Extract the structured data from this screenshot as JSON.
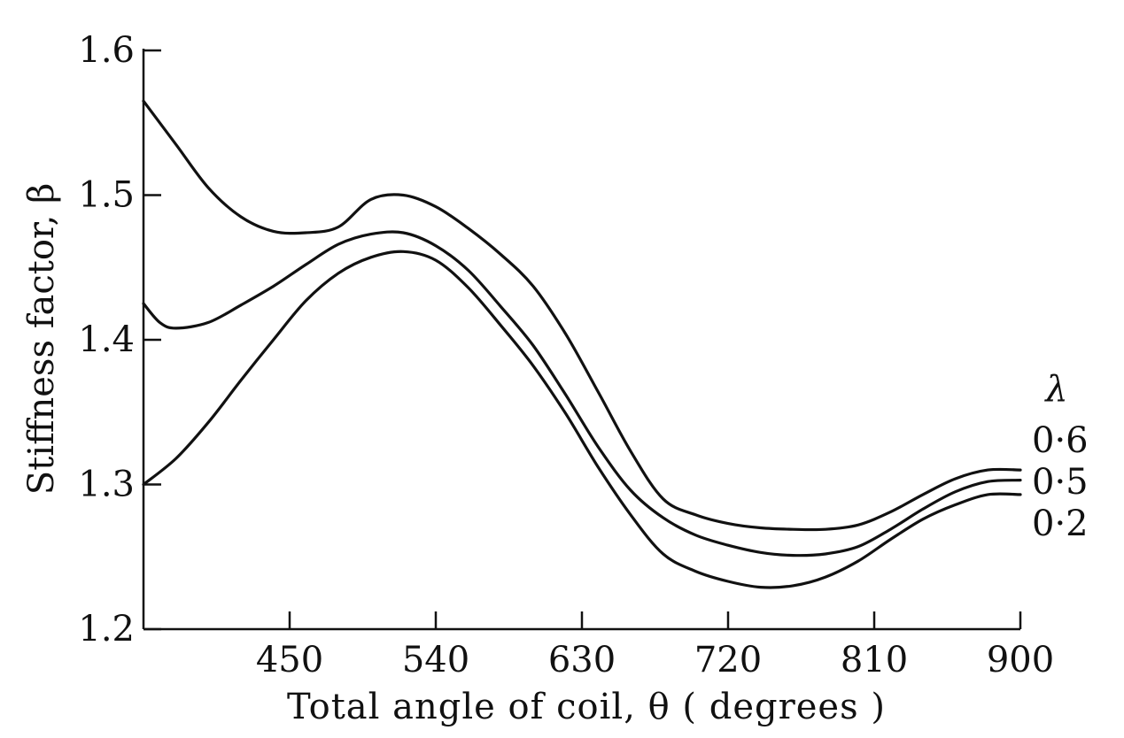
{
  "chart_data": {
    "type": "line",
    "title": "",
    "xlabel": "Total angle of coil, θ ( degrees )",
    "ylabel": "Stiffness factor, β",
    "xlim": [
      360,
      900
    ],
    "ylim": [
      1.2,
      1.6
    ],
    "x_ticks": [
      450,
      540,
      630,
      720,
      810,
      900
    ],
    "x_tick_labels": [
      "450",
      "540",
      "630",
      "720",
      "810",
      "900"
    ],
    "y_ticks": [
      1.2,
      1.3,
      1.4,
      1.5,
      1.6
    ],
    "y_tick_labels": [
      "1.2",
      "1.3",
      "1.4",
      "1.5",
      "1.6"
    ],
    "grid": false,
    "legend": {
      "title": "λ",
      "placement": "right",
      "entries": [
        "0·6",
        "0·5",
        "0·2"
      ]
    },
    "series": [
      {
        "name": "0·6",
        "x": [
          360,
          380,
          400,
          420,
          440,
          460,
          480,
          500,
          520,
          540,
          560,
          580,
          600,
          620,
          640,
          660,
          680,
          700,
          720,
          740,
          760,
          780,
          800,
          820,
          840,
          860,
          880,
          900
        ],
        "y": [
          1.565,
          1.535,
          1.505,
          1.485,
          1.475,
          1.474,
          1.478,
          1.497,
          1.5,
          1.492,
          1.477,
          1.459,
          1.437,
          1.404,
          1.364,
          1.323,
          1.29,
          1.279,
          1.273,
          1.27,
          1.269,
          1.269,
          1.272,
          1.281,
          1.293,
          1.304,
          1.31,
          1.31
        ]
      },
      {
        "name": "0·5",
        "x": [
          360,
          370,
          380,
          400,
          420,
          440,
          460,
          480,
          500,
          520,
          540,
          560,
          580,
          600,
          620,
          640,
          660,
          680,
          700,
          720,
          740,
          760,
          780,
          800,
          820,
          840,
          860,
          880,
          900
        ],
        "y": [
          1.425,
          1.412,
          1.408,
          1.412,
          1.424,
          1.437,
          1.452,
          1.466,
          1.473,
          1.474,
          1.465,
          1.448,
          1.423,
          1.396,
          1.362,
          1.326,
          1.296,
          1.277,
          1.265,
          1.258,
          1.253,
          1.251,
          1.252,
          1.257,
          1.269,
          1.283,
          1.295,
          1.302,
          1.303
        ]
      },
      {
        "name": "0·2",
        "x": [
          360,
          380,
          400,
          420,
          440,
          460,
          480,
          500,
          520,
          540,
          560,
          580,
          600,
          620,
          640,
          660,
          680,
          700,
          720,
          740,
          760,
          780,
          800,
          820,
          840,
          860,
          880,
          900
        ],
        "y": [
          1.3,
          1.318,
          1.343,
          1.372,
          1.4,
          1.427,
          1.446,
          1.457,
          1.461,
          1.455,
          1.436,
          1.41,
          1.382,
          1.349,
          1.312,
          1.279,
          1.252,
          1.24,
          1.233,
          1.229,
          1.23,
          1.236,
          1.247,
          1.262,
          1.276,
          1.286,
          1.293,
          1.293
        ]
      }
    ]
  }
}
